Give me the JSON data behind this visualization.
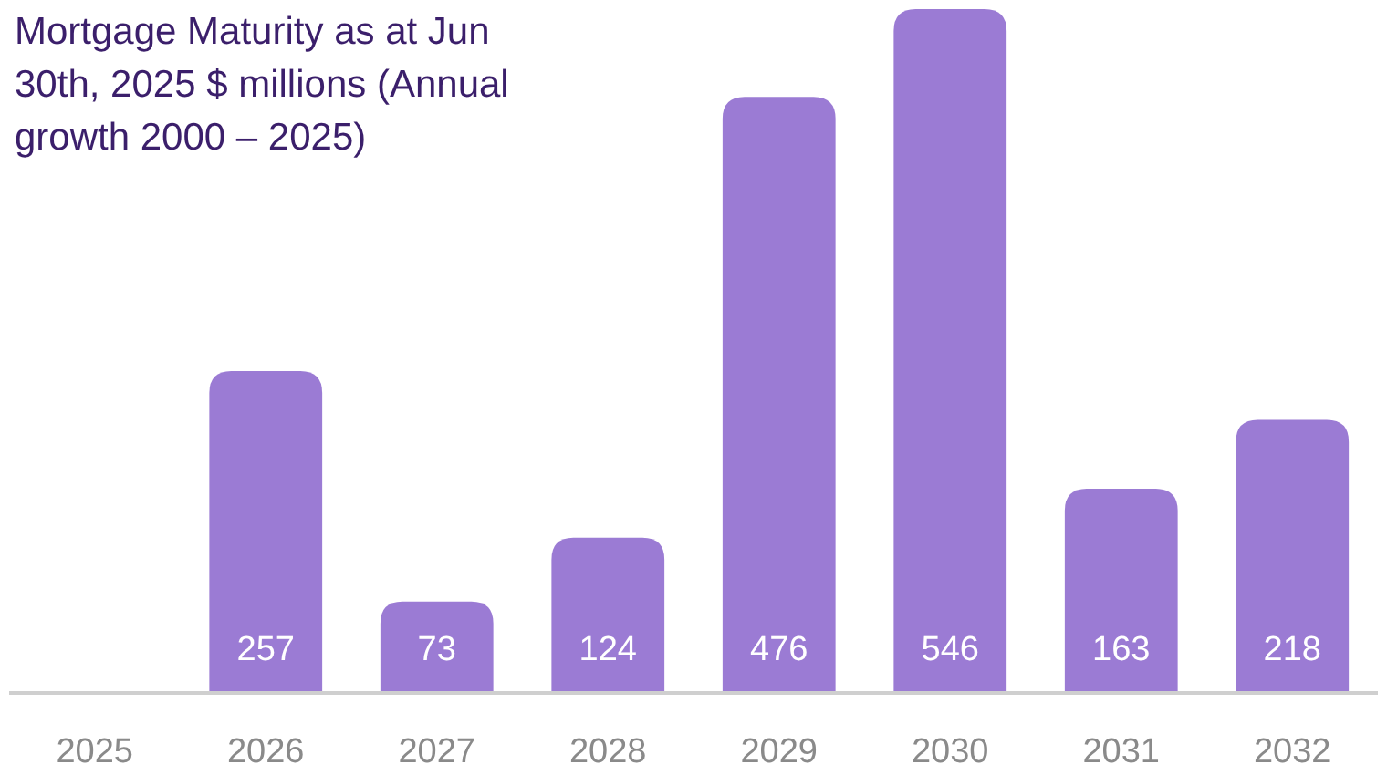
{
  "chart_data": {
    "type": "bar",
    "title": "Mortgage Maturity as at Jun 30th, 2025 $ millions (Annual growth 2000 – 2025)",
    "categories": [
      "2025",
      "2026",
      "2027",
      "2028",
      "2029",
      "2030",
      "2031",
      "2032"
    ],
    "values": [
      null,
      257,
      73,
      124,
      476,
      546,
      163,
      218
    ],
    "color": "#9b7bd4",
    "data_labels": true
  }
}
